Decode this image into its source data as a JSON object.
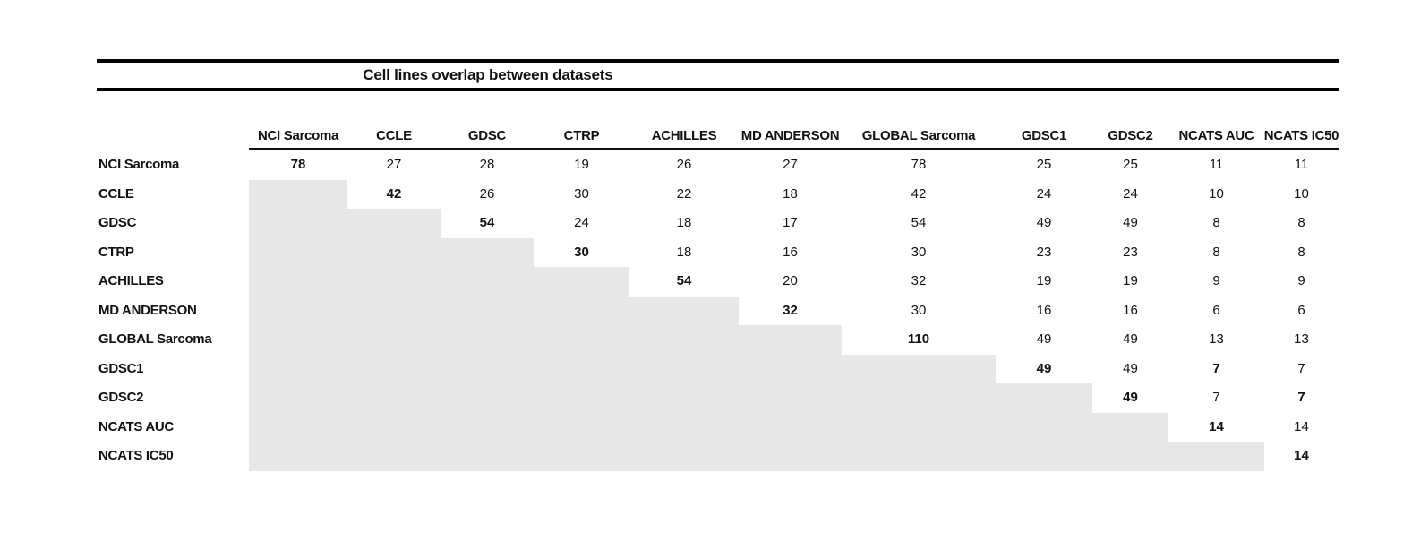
{
  "chart_data": {
    "type": "table",
    "title": "Cell lines overlap between datasets",
    "columns": [
      "NCI Sarcoma",
      "CCLE",
      "GDSC",
      "CTRP",
      "ACHILLES",
      "MD ANDERSON",
      "GLOBAL Sarcoma",
      "GDSC1",
      "GDSC2",
      "NCATS AUC",
      "NCATS IC50"
    ],
    "rows": [
      "NCI Sarcoma",
      "CCLE",
      "GDSC",
      "CTRP",
      "ACHILLES",
      "MD ANDERSON",
      "GLOBAL Sarcoma",
      "GDSC1",
      "GDSC2",
      "NCATS AUC",
      "NCATS IC50"
    ],
    "matrix": [
      [
        78,
        27,
        28,
        19,
        26,
        27,
        78,
        25,
        25,
        11,
        11
      ],
      [
        null,
        42,
        26,
        30,
        22,
        18,
        42,
        24,
        24,
        10,
        10
      ],
      [
        null,
        null,
        54,
        24,
        18,
        17,
        54,
        49,
        49,
        8,
        8
      ],
      [
        null,
        null,
        null,
        30,
        18,
        16,
        30,
        23,
        23,
        8,
        8
      ],
      [
        null,
        null,
        null,
        null,
        54,
        20,
        32,
        19,
        19,
        9,
        9
      ],
      [
        null,
        null,
        null,
        null,
        null,
        32,
        30,
        16,
        16,
        6,
        6
      ],
      [
        null,
        null,
        null,
        null,
        null,
        null,
        110,
        49,
        49,
        13,
        13
      ],
      [
        null,
        null,
        null,
        null,
        null,
        null,
        null,
        49,
        49,
        7,
        7
      ],
      [
        null,
        null,
        null,
        null,
        null,
        null,
        null,
        null,
        49,
        7,
        7
      ],
      [
        null,
        null,
        null,
        null,
        null,
        null,
        null,
        null,
        null,
        14,
        14
      ],
      [
        null,
        null,
        null,
        null,
        null,
        null,
        null,
        null,
        null,
        null,
        14
      ]
    ],
    "bold_diagonal": true,
    "extra_bold_cells": [
      [
        7,
        9
      ],
      [
        8,
        10
      ]
    ],
    "lower_triangle_shaded": true,
    "shade_color": "#e7e7e7",
    "rule_color": "#000000",
    "legend_position": "none",
    "grid": "off"
  }
}
